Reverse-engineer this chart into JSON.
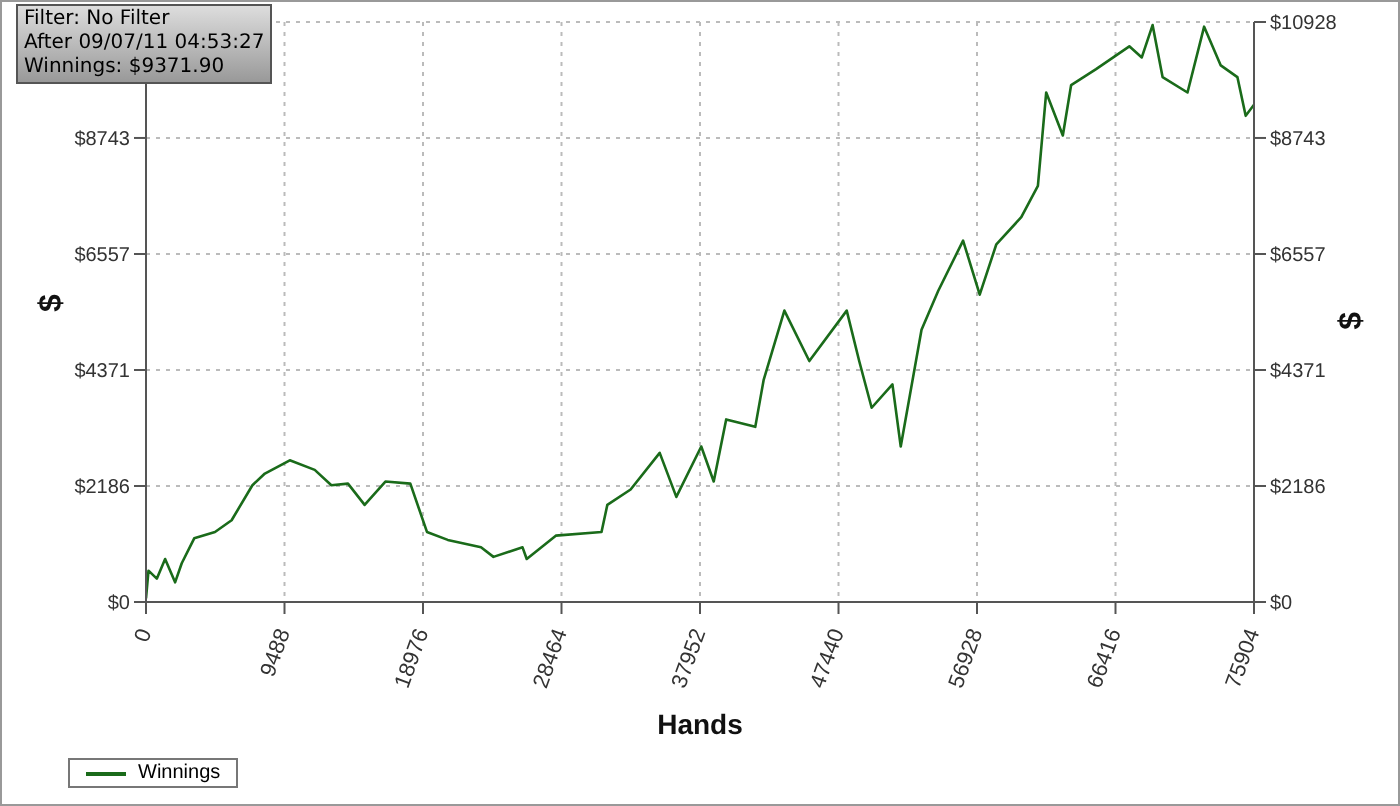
{
  "chart_data": {
    "type": "line",
    "xlabel": "Hands",
    "ylabel": "$",
    "y2label": "$",
    "annotations": [
      "Filter: No Filter",
      "After 09/07/11 04:53:27",
      "Winnings: $9371.90"
    ],
    "x": [
      0,
      171,
      740,
      1310,
      1993,
      2448,
      3303,
      4726,
      5865,
      7289,
      8143,
      9851,
      11559,
      12698,
      13837,
      14976,
      16400,
      18108,
      19247,
      20671,
      22949,
      23803,
      25796,
      26081,
      28074,
      31205,
      31604,
      33198,
      35191,
      36330,
      38038,
      38892,
      39746,
      41739,
      42309,
      43732,
      45441,
      48003,
      48857,
      49711,
      51135,
      51704,
      53128,
      54267,
      55975,
      57114,
      58253,
      59961,
      61100,
      61669,
      62808,
      63377,
      65085,
      67363,
      68217,
      68957,
      69640,
      71349,
      72488,
      73627,
      74766,
      75335,
      75904
    ],
    "series": [
      {
        "name": "Winnings",
        "color": "#1a6b1a",
        "values": [
          70,
          590,
          440,
          810,
          370,
          730,
          1200,
          1320,
          1540,
          2200,
          2420,
          2670,
          2490,
          2200,
          2230,
          1830,
          2270,
          2230,
          1320,
          1170,
          1030,
          850,
          1030,
          810,
          1250,
          1320,
          1830,
          2120,
          2810,
          1980,
          2930,
          2270,
          3440,
          3300,
          4180,
          5490,
          4540,
          5490,
          4540,
          3660,
          4100,
          2930,
          5130,
          5860,
          6810,
          5790,
          6740,
          7250,
          7840,
          9600,
          8790,
          9740,
          10040,
          10470,
          10260,
          10870,
          9890,
          9600,
          10840,
          10110,
          9890,
          9160,
          9370
        ]
      }
    ],
    "xlim": [
      0,
      75904
    ],
    "xticks": [
      0,
      9488,
      18976,
      28464,
      37952,
      47440,
      56928,
      66416,
      75904
    ],
    "ylim": [
      0,
      10928
    ],
    "yticks": [
      {
        "value": 0,
        "label": "$0"
      },
      {
        "value": 2186,
        "label": "$2186"
      },
      {
        "value": 4371,
        "label": "$4371"
      },
      {
        "value": 6557,
        "label": "$6557"
      },
      {
        "value": 8743,
        "label": "$8743"
      }
    ],
    "y2lim": [
      0,
      10928
    ],
    "y2ticks": [
      {
        "value": 0,
        "label": "$0"
      },
      {
        "value": 2186,
        "label": "$2186"
      },
      {
        "value": 4371,
        "label": "$4371"
      },
      {
        "value": 6557,
        "label": "$6557"
      },
      {
        "value": 8743,
        "label": "$8743"
      },
      {
        "value": 10928,
        "label": "$10928"
      }
    ],
    "grid": true,
    "legend": "bottom left",
    "marker": "none",
    "line_style": "solid"
  }
}
